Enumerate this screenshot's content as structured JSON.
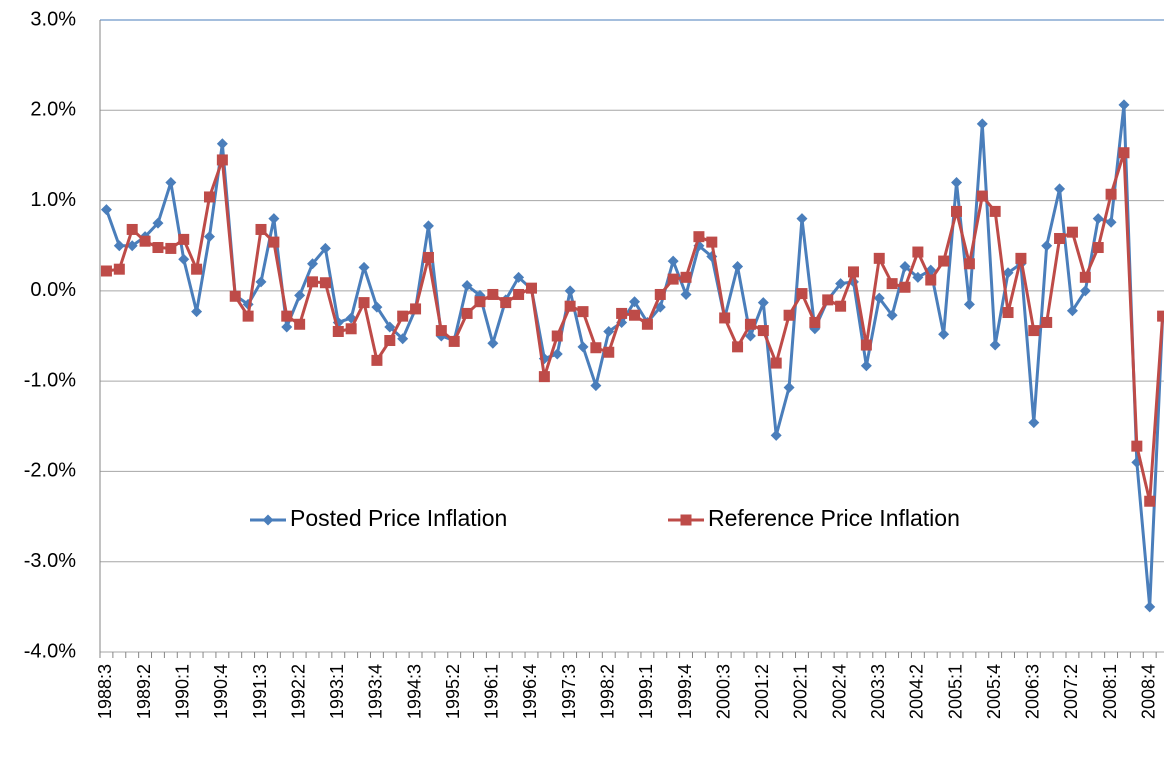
{
  "chart_data": {
    "type": "line",
    "categories": [
      "1988:3",
      null,
      null,
      "1989:2",
      null,
      null,
      "1990:1",
      null,
      null,
      "1990:4",
      null,
      null,
      "1991:3",
      null,
      null,
      "1992:2",
      null,
      null,
      "1993:1",
      null,
      null,
      "1993:4",
      null,
      null,
      "1994:3",
      null,
      null,
      "1995:2",
      null,
      null,
      "1996:1",
      null,
      null,
      "1996:4",
      null,
      null,
      "1997:3",
      null,
      null,
      "1998:2",
      null,
      null,
      "1999:1",
      null,
      null,
      "1999:4",
      null,
      null,
      "2000:3",
      null,
      null,
      "2001:2",
      null,
      null,
      "2002:1",
      null,
      null,
      "2002:4",
      null,
      null,
      "2003:3",
      null,
      null,
      "2004:2",
      null,
      null,
      "2005:1",
      null,
      null,
      "2005:4",
      null,
      null,
      "2006:3",
      null,
      null,
      "2007:2",
      null,
      null,
      "2008:1",
      null,
      null,
      "2008:4",
      null
    ],
    "series": [
      {
        "name": "Posted Price Inflation",
        "color": "#4a7ebb",
        "marker": "diamond",
        "values": [
          0.9,
          0.5,
          0.5,
          0.6,
          0.75,
          1.2,
          0.35,
          -0.23,
          0.6,
          1.63,
          -0.05,
          -0.15,
          0.1,
          0.8,
          -0.4,
          -0.05,
          0.3,
          0.47,
          -0.35,
          -0.3,
          0.26,
          -0.18,
          -0.4,
          -0.53,
          -0.2,
          0.72,
          -0.5,
          -0.55,
          0.06,
          -0.05,
          -0.58,
          -0.1,
          0.15,
          0.02,
          -0.75,
          -0.7,
          0.0,
          -0.62,
          -1.05,
          -0.45,
          -0.35,
          -0.12,
          -0.35,
          -0.18,
          0.33,
          -0.04,
          0.5,
          0.38,
          -0.3,
          0.27,
          -0.5,
          -0.13,
          -1.6,
          -1.07,
          0.8,
          -0.42,
          -0.1,
          0.08,
          0.1,
          -0.83,
          -0.08,
          -0.27,
          0.27,
          0.15,
          0.23,
          -0.48,
          1.2,
          -0.15,
          1.85,
          -0.6,
          0.2,
          0.3,
          -1.46,
          0.5,
          1.13,
          -0.22,
          0.0,
          0.8,
          0.76,
          2.06,
          -1.9,
          -3.5,
          -0.3
        ]
      },
      {
        "name": "Reference Price Inflation",
        "color": "#be4b48",
        "marker": "square",
        "values": [
          0.22,
          0.24,
          0.68,
          0.55,
          0.48,
          0.47,
          0.57,
          0.24,
          1.04,
          1.45,
          -0.06,
          -0.28,
          0.68,
          0.54,
          -0.28,
          -0.37,
          0.1,
          0.09,
          -0.45,
          -0.42,
          -0.13,
          -0.77,
          -0.55,
          -0.28,
          -0.2,
          0.37,
          -0.44,
          -0.56,
          -0.25,
          -0.12,
          -0.04,
          -0.13,
          -0.04,
          0.03,
          -0.95,
          -0.5,
          -0.17,
          -0.23,
          -0.63,
          -0.68,
          -0.25,
          -0.27,
          -0.37,
          -0.04,
          0.13,
          0.15,
          0.6,
          0.54,
          -0.3,
          -0.62,
          -0.37,
          -0.44,
          -0.8,
          -0.27,
          -0.03,
          -0.35,
          -0.1,
          -0.17,
          0.21,
          -0.6,
          0.36,
          0.08,
          0.04,
          0.43,
          0.12,
          0.33,
          0.88,
          0.3,
          1.05,
          0.88,
          -0.24,
          0.36,
          -0.44,
          -0.35,
          0.58,
          0.65,
          0.15,
          0.48,
          1.07,
          1.53,
          -1.72,
          -2.33,
          -0.28
        ]
      }
    ],
    "ylim": [
      -4,
      3
    ],
    "yticks": [
      {
        "value": -4,
        "label": "-4.0%"
      },
      {
        "value": -3,
        "label": "-3.0%"
      },
      {
        "value": -2,
        "label": "-2.0%"
      },
      {
        "value": -1,
        "label": "-1.0%"
      },
      {
        "value": 0,
        "label": "0.0%"
      },
      {
        "value": 1,
        "label": "1.0%"
      },
      {
        "value": 2,
        "label": "2.0%"
      },
      {
        "value": 3,
        "label": "3.0%"
      }
    ],
    "grid": true,
    "legend": "lower center"
  }
}
